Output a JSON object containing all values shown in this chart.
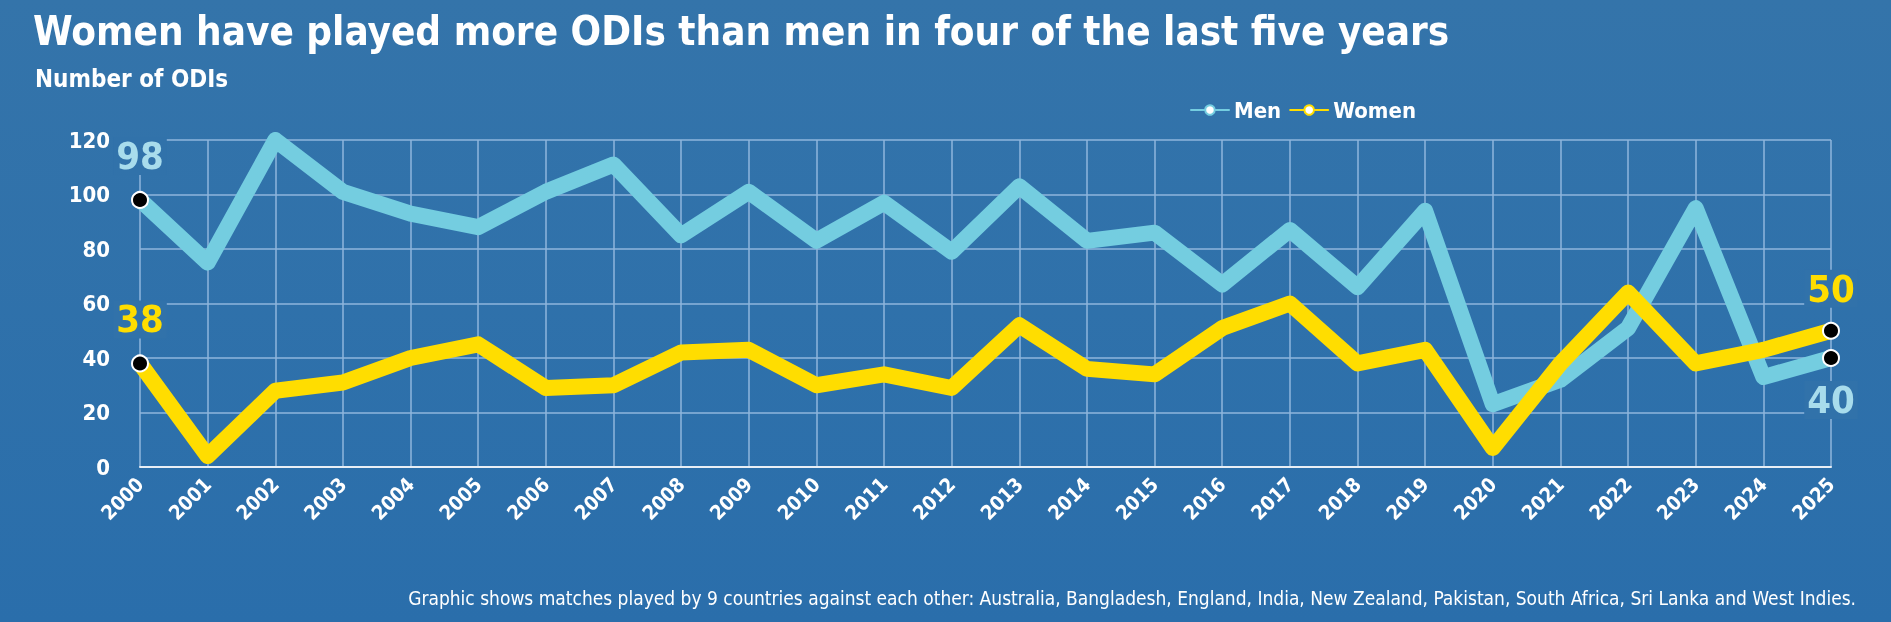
{
  "chart_data": {
    "type": "line",
    "title": "Women have played more ODIs than men in four of the last five years",
    "subtitle": "Number of ODIs",
    "annotations": [
      "Graphic shows matches played by 9 countries against each other: Australia, Bangladesh, England, India, New Zealand, Pakistan, South Africa, Sri Lanka and West Indies."
    ],
    "categories": [
      "2000",
      "2001",
      "2002",
      "2003",
      "2004",
      "2005",
      "2006",
      "2007",
      "2008",
      "2009",
      "2010",
      "2011",
      "2012",
      "2013",
      "2014",
      "2015",
      "2016",
      "2017",
      "2018",
      "2019",
      "2020",
      "2021",
      "2022",
      "2023",
      "2024",
      "2025"
    ],
    "series": [
      {
        "name": "Men",
        "color": "#74cde0",
        "values": [
          98,
          75,
          120,
          101,
          93,
          88,
          101,
          111,
          85,
          101,
          83,
          97,
          79,
          103,
          83,
          86,
          67,
          87,
          66,
          94,
          23,
          32,
          51,
          95,
          33,
          40
        ],
        "value_labels": [
          "98",
          null,
          null,
          null,
          null,
          null,
          null,
          null,
          null,
          null,
          null,
          null,
          null,
          null,
          null,
          null,
          null,
          null,
          null,
          null,
          null,
          null,
          null,
          null,
          null,
          "40"
        ]
      },
      {
        "name": "Women",
        "color": "#ffdd00",
        "values": [
          38,
          4,
          28,
          31,
          40,
          45,
          29,
          30,
          42,
          43,
          30,
          34,
          29,
          52,
          36,
          34,
          51,
          60,
          38,
          43,
          7,
          38,
          64,
          38,
          43,
          50
        ],
        "value_labels": [
          "38",
          null,
          null,
          null,
          null,
          null,
          null,
          null,
          null,
          null,
          null,
          null,
          null,
          null,
          null,
          null,
          null,
          null,
          null,
          null,
          null,
          null,
          null,
          null,
          null,
          "50"
        ]
      }
    ],
    "ylim": [
      0,
      120
    ],
    "yticks": [
      0,
      20,
      40,
      60,
      80,
      100,
      120
    ],
    "grid": true,
    "legend": "top right",
    "line_style": "solid"
  }
}
